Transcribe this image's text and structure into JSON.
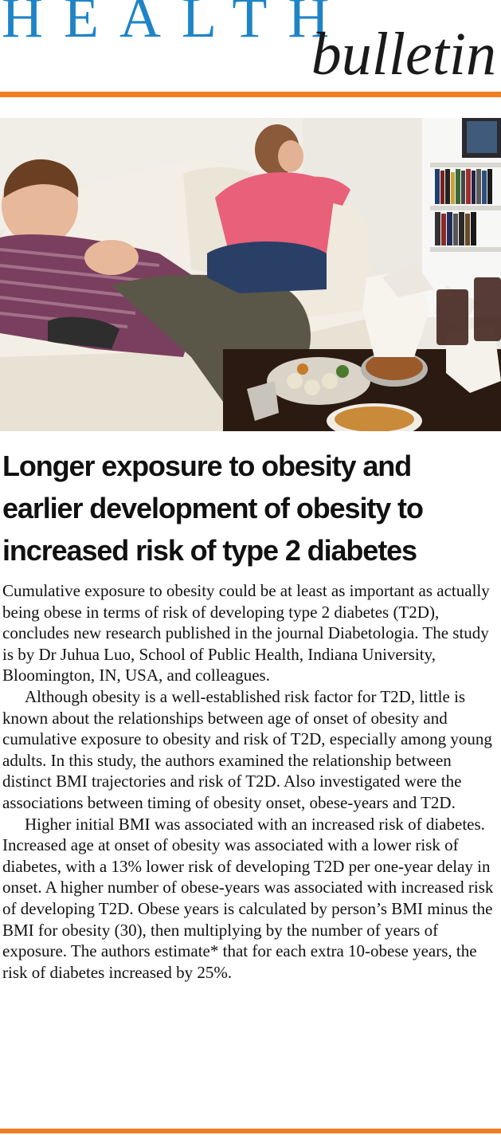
{
  "masthead": {
    "word1": "HEALTH",
    "word2": "bulletin"
  },
  "colors": {
    "brand_blue": "#1e84c6",
    "accent_orange": "#ef7d22",
    "text": "#111111"
  },
  "photo": {
    "icon": "photo-children-couch-takeout"
  },
  "article": {
    "headline": "Longer exposure to obesity and earlier development of obesity to increased risk of type 2 diabetes",
    "paragraphs": [
      "Cumulative exposure to obesity could be at least as important as actually being obese in terms of risk of developing type 2 diabetes (T2D), concludes new research published in the journal Diabetologia. The study is by Dr Juhua Luo, School of Public Health, Indiana University, Bloomington, IN, USA, and colleagues.",
      "Although obesity is a well-established risk factor for T2D, little is known about the relationships between age of onset of obesity and cumulative exposure to obesity and risk of T2D, especially among young adults. In this study, the authors examined the relationship between distinct BMI trajectories and risk of T2D. Also investigated were the associations between timing of obesity onset, obese-years and T2D.",
      "Higher initial BMI was associated with an increased risk of diabetes. Increased age at onset of obesity was associated with a lower risk of diabetes, with a 13% lower risk of developing T2D per one-year delay in onset. A higher number of obese-years was associated with increased risk of developing T2D. Obese years is calculated by person’s BMI minus the BMI for obesity (30), then multiplying by the number of years of exposure. The authors estimate* that for each extra 10-obese years, the risk of diabetes increased by 25%."
    ]
  }
}
